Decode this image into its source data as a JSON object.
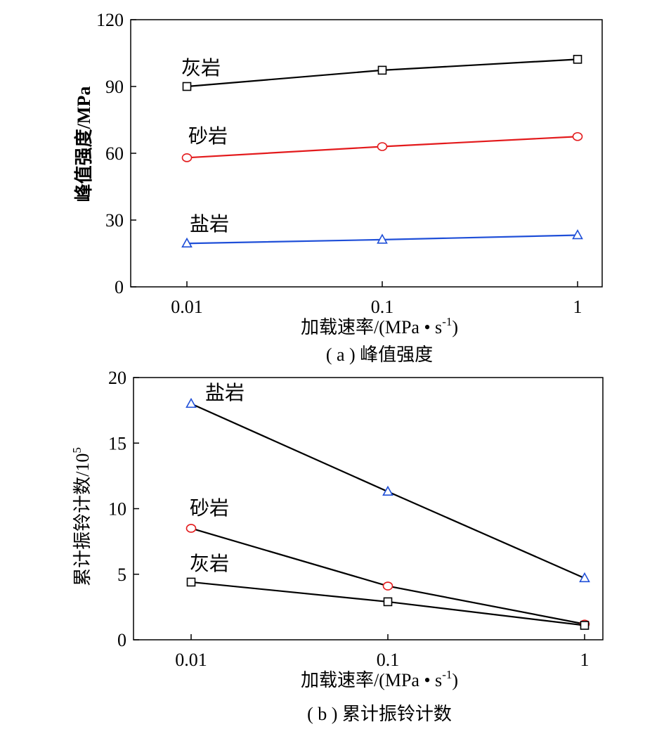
{
  "chart_data": [
    {
      "type": "line",
      "panel": "a",
      "caption": "( a ) 峰值强度",
      "xlabel": "加载速率/(MPa • s",
      "xlabel_sup": "-1",
      "xlabel_end": ")",
      "ylabel": "峰值强度/MPa",
      "x_scale": "log",
      "x": [
        0.01,
        0.1,
        1
      ],
      "x_tick_labels": [
        "0.01",
        "0.1",
        "1"
      ],
      "ylim": [
        0,
        120
      ],
      "y_ticks": [
        0,
        30,
        60,
        90,
        120
      ],
      "grid": false,
      "series": [
        {
          "name": "灰岩",
          "values": [
            90,
            97.3,
            102.2
          ],
          "color": "#000000",
          "marker": "square"
        },
        {
          "name": "砂岩",
          "values": [
            58,
            63,
            67.5
          ],
          "color": "#e31a1c",
          "marker": "circle"
        },
        {
          "name": "盐岩",
          "values": [
            19.5,
            21.2,
            23.2
          ],
          "color": "#1f4fd8",
          "marker": "triangle"
        }
      ]
    },
    {
      "type": "line",
      "panel": "b",
      "caption": "( b ) 累计振铃计数",
      "xlabel": "加载速率/(MPa • s",
      "xlabel_sup": "-1",
      "xlabel_end": ")",
      "ylabel": "累计振铃计数/10",
      "ylabel_sup": "5",
      "x_scale": "log",
      "x": [
        0.01,
        0.1,
        1
      ],
      "x_tick_labels": [
        "0.01",
        "0.1",
        "1"
      ],
      "ylim": [
        0,
        20
      ],
      "y_ticks": [
        0,
        5,
        10,
        15,
        20
      ],
      "grid": false,
      "series": [
        {
          "name": "盐岩",
          "values": [
            18,
            11.3,
            4.7
          ],
          "color": "#1f4fd8",
          "marker": "triangle",
          "line_color": "#000000"
        },
        {
          "name": "砂岩",
          "values": [
            8.5,
            4.1,
            1.2
          ],
          "color": "#e31a1c",
          "marker": "circle",
          "line_color": "#000000"
        },
        {
          "name": "灰岩",
          "values": [
            4.4,
            2.9,
            1.1
          ],
          "color": "#000000",
          "marker": "square",
          "line_color": "#000000"
        }
      ]
    }
  ]
}
